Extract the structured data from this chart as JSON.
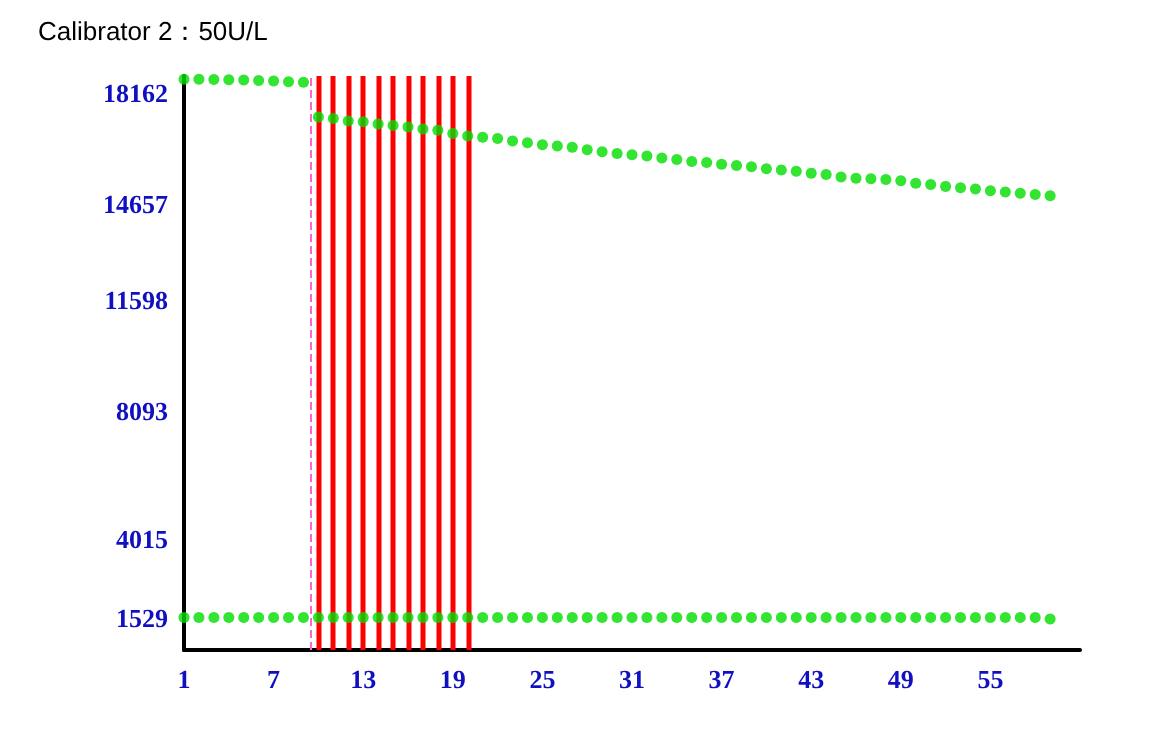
{
  "chart_data": {
    "type": "scatter",
    "title": "Calibrator 2：50U/L",
    "x": [
      1,
      2,
      3,
      4,
      5,
      6,
      7,
      8,
      9,
      10,
      11,
      12,
      13,
      14,
      15,
      16,
      17,
      18,
      19,
      20,
      21,
      22,
      23,
      24,
      25,
      26,
      27,
      28,
      29,
      30,
      31,
      32,
      33,
      34,
      35,
      36,
      37,
      38,
      39,
      40,
      41,
      42,
      43,
      44,
      45,
      46,
      47,
      48,
      49,
      50,
      51,
      52,
      53,
      54,
      55,
      56,
      57,
      58,
      59
    ],
    "series": [
      {
        "color": "#00dd00",
        "values": [
          18600,
          18600,
          18590,
          18580,
          18570,
          18560,
          18540,
          18520,
          18500,
          17400,
          17350,
          17270,
          17250,
          17180,
          17130,
          17080,
          17020,
          16980,
          16880,
          16800,
          16760,
          16720,
          16640,
          16580,
          16520,
          16480,
          16440,
          16360,
          16300,
          16240,
          16200,
          16160,
          16100,
          16050,
          15990,
          15960,
          15900,
          15860,
          15820,
          15760,
          15720,
          15680,
          15620,
          15580,
          15500,
          15460,
          15440,
          15420,
          15380,
          15300,
          15260,
          15200,
          15160,
          15120,
          15060,
          15020,
          14980,
          14940,
          14900
        ]
      },
      {
        "color": "#00dd00",
        "values": [
          1529,
          1529,
          1529,
          1529,
          1529,
          1529,
          1529,
          1529,
          1529,
          1529,
          1529,
          1529,
          1529,
          1529,
          1529,
          1529,
          1529,
          1529,
          1529,
          1529,
          1529,
          1529,
          1529,
          1529,
          1529,
          1529,
          1529,
          1529,
          1529,
          1529,
          1529,
          1529,
          1529,
          1529,
          1529,
          1529,
          1529,
          1529,
          1529,
          1529,
          1529,
          1529,
          1529,
          1529,
          1529,
          1529,
          1529,
          1529,
          1529,
          1529,
          1529,
          1529,
          1529,
          1529,
          1529,
          1529,
          1529,
          1529,
          1480
        ]
      }
    ],
    "xlim": [
      1,
      61
    ],
    "xticks": [
      1,
      7,
      13,
      19,
      25,
      31,
      37,
      43,
      49,
      55
    ],
    "ylim": [
      500,
      18700
    ],
    "yticks": [
      1529,
      4015,
      8093,
      11598,
      14657,
      18162
    ],
    "grid": false,
    "marker": "circle",
    "ref_lines": [
      {
        "axis": "x",
        "value": 9.5,
        "color": "#ff66cc",
        "line_style": "dashed"
      },
      {
        "axis": "x",
        "value": 10,
        "color": "#ff0000"
      },
      {
        "axis": "x",
        "value": 11,
        "color": "#ff0000"
      },
      {
        "axis": "x",
        "value": 12,
        "color": "#ff0000"
      },
      {
        "axis": "x",
        "value": 13,
        "color": "#ff0000"
      },
      {
        "axis": "x",
        "value": 14,
        "color": "#ff0000"
      },
      {
        "axis": "x",
        "value": 15,
        "color": "#ff0000"
      },
      {
        "axis": "x",
        "value": 16,
        "color": "#ff0000"
      },
      {
        "axis": "x",
        "value": 17,
        "color": "#ff0000"
      },
      {
        "axis": "x",
        "value": 18,
        "color": "#ff0000"
      },
      {
        "axis": "x",
        "value": 19,
        "color": "#ff0000"
      },
      {
        "axis": "x",
        "value": 20,
        "color": "#ff0000"
      }
    ]
  }
}
